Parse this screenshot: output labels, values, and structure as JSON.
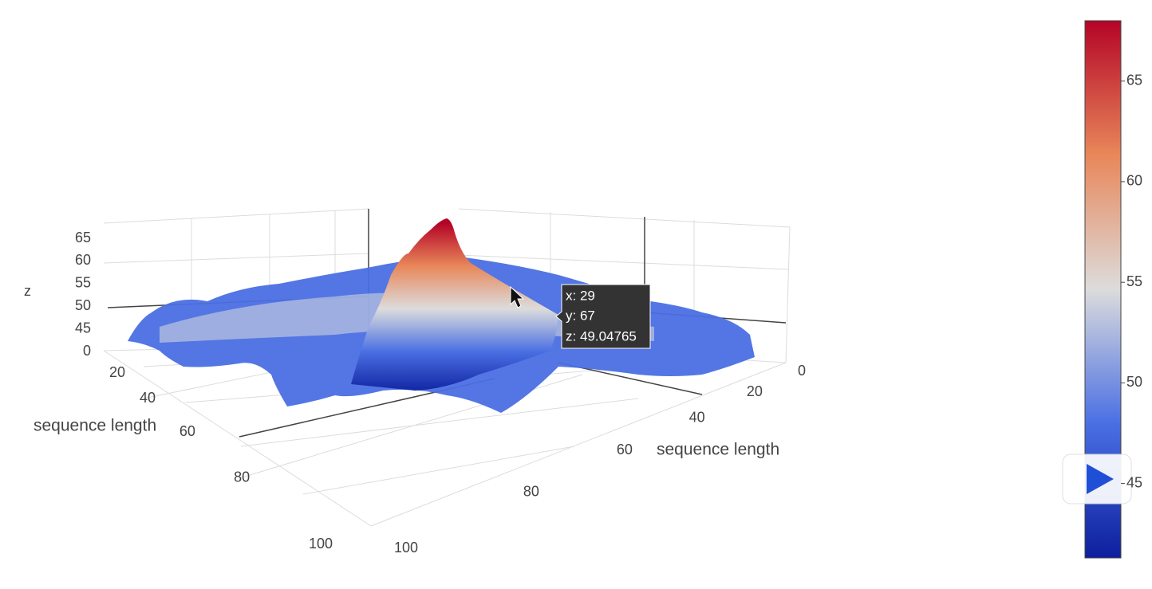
{
  "chart_data": {
    "type": "surface3d",
    "x_axis_label": "sequence length",
    "y_axis_label": "sequence length",
    "z_axis_label": "z",
    "xticks": [
      20,
      40,
      60,
      80,
      100
    ],
    "yticks": [
      0,
      20,
      40,
      60,
      80,
      100
    ],
    "zticks": [
      0,
      45,
      50,
      55,
      60,
      65
    ],
    "colorscale": [
      "#0d1f9e",
      "#4a6fe3",
      "#dcdcdc",
      "#e8875a",
      "#b40426"
    ],
    "colorbar": {
      "lim": [
        41.3,
        68
      ],
      "ticks": [
        45,
        50,
        55,
        60,
        65
      ]
    },
    "hover": {
      "lines": [
        "x: 29",
        "y: 67",
        "z: 49.04765"
      ]
    }
  }
}
